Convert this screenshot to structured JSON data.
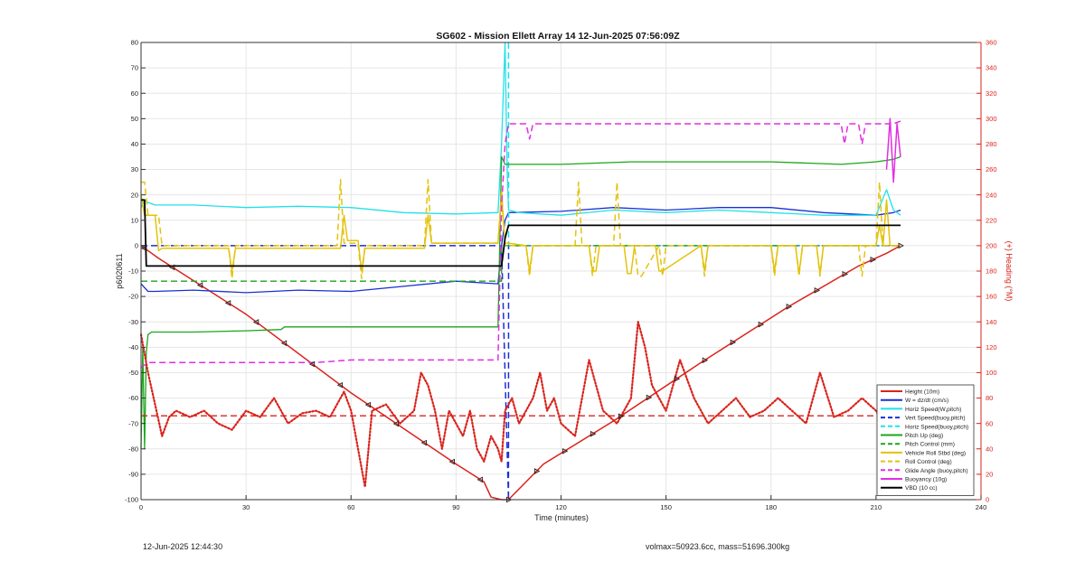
{
  "chart_data": {
    "type": "line",
    "title": "SG602 - Mission Ellett Array 14 12-Jun-2025 07:56:09Z",
    "xlabel": "Time (minutes)",
    "ylabel": "p6020611",
    "y2label": "(+) Heading (°M)",
    "xlim": [
      0,
      240
    ],
    "ylim": [
      -100,
      80
    ],
    "y2lim": [
      0,
      360
    ],
    "xticks": [
      0,
      30,
      60,
      90,
      120,
      150,
      180,
      210,
      240
    ],
    "yticks": [
      -100,
      -90,
      -80,
      -70,
      -60,
      -50,
      -40,
      -30,
      -20,
      -10,
      0,
      10,
      20,
      30,
      40,
      50,
      60,
      70,
      80
    ],
    "y2ticks": [
      0,
      20,
      40,
      60,
      80,
      100,
      120,
      140,
      160,
      180,
      200,
      220,
      240,
      260,
      280,
      300,
      320,
      340,
      360
    ],
    "grid": true,
    "legend_position": "bottom-right",
    "series": [
      {
        "name": "Height (10m)",
        "color": "#d9231c",
        "style": "solid",
        "width": 1.5,
        "x": [
          0,
          1,
          5,
          30,
          60,
          90,
          98,
          100,
          103,
          105,
          115,
          135,
          160,
          185,
          205,
          213,
          217
        ],
        "values": [
          0,
          -1,
          -5,
          -27,
          -58,
          -86,
          -93,
          -99,
          -100,
          -100,
          -86,
          -69,
          -46,
          -24,
          -8,
          -3,
          0
        ]
      },
      {
        "name": "W = dz/dt (cm/s)",
        "color": "#1a2fd6",
        "style": "solid",
        "width": 1.3,
        "x": [
          0,
          2,
          4,
          15,
          30,
          45,
          60,
          75,
          90,
          102,
          103,
          104,
          105,
          120,
          135,
          150,
          165,
          180,
          195,
          210,
          215,
          217
        ],
        "values": [
          -15,
          -18,
          -18,
          -17.5,
          -18.5,
          -17.5,
          -18,
          -16,
          -14,
          -15,
          0,
          10,
          13,
          13.5,
          15,
          14,
          15,
          15,
          13,
          12,
          13,
          14
        ]
      },
      {
        "name": "Horiz Speed(W,pitch)",
        "color": "#22e0e8",
        "style": "solid",
        "width": 1.3,
        "x": [
          0,
          1,
          2,
          4,
          15,
          30,
          45,
          60,
          75,
          90,
          102,
          103,
          104,
          104.6,
          105,
          108,
          120,
          135,
          150,
          165,
          180,
          195,
          210,
          213,
          215,
          217
        ],
        "values": [
          15,
          18,
          17,
          16,
          16,
          15,
          15.5,
          15,
          13,
          12.5,
          13,
          40,
          80,
          30,
          14,
          13,
          12,
          14,
          13,
          14,
          13,
          12,
          12,
          22,
          14,
          12
        ]
      },
      {
        "name": "Vert Speed(buoy,pitch)",
        "color": "#1a2fd6",
        "style": "dashed",
        "width": 1.5,
        "x": [
          0,
          103,
          105,
          105.01,
          217
        ],
        "values": [
          0,
          0,
          -100,
          0,
          0
        ]
      },
      {
        "name": "Horiz Speed(buoy,pitch)",
        "color": "#22e0e8",
        "style": "dashed",
        "width": 1.5,
        "x": [
          105,
          105.01,
          217
        ],
        "values": [
          80,
          0,
          0
        ]
      },
      {
        "name": "Pitch Up (deg)",
        "color": "#1aa61a",
        "style": "solid",
        "width": 1.3,
        "x": [
          0,
          0.5,
          1,
          1.5,
          2,
          3,
          15,
          30,
          40,
          41,
          60,
          75,
          90,
          102,
          103,
          104,
          105,
          120,
          140,
          160,
          180,
          200,
          210,
          215,
          217
        ],
        "values": [
          -80,
          -40,
          -80,
          -42,
          -35,
          -34,
          -34,
          -33.5,
          -33,
          -32,
          -32,
          -32,
          -32,
          -32,
          35,
          32,
          32,
          32,
          33,
          33,
          33,
          32,
          33,
          34,
          35
        ]
      },
      {
        "name": "Pitch Control (mm)",
        "color": "#1aa61a",
        "style": "dashed",
        "width": 1.3,
        "x": [
          0,
          103,
          103.01,
          217
        ],
        "values": [
          -14,
          -14,
          0,
          0
        ]
      },
      {
        "name": "Vehicle Roll Stbd (deg)",
        "color": "#e3c30e",
        "style": "solid",
        "width": 1.5,
        "x": [
          0,
          1,
          4,
          5,
          6,
          25,
          26,
          27,
          30,
          57,
          58,
          59,
          62,
          63,
          64,
          81,
          82,
          83,
          102,
          103,
          104,
          105,
          110,
          111,
          112,
          115,
          128,
          129,
          130,
          131,
          138,
          139,
          140,
          141,
          147,
          148,
          149,
          160,
          161,
          162,
          180,
          181,
          182,
          187,
          188,
          189,
          193,
          194,
          195,
          210,
          211,
          212,
          213,
          214,
          217
        ],
        "values": [
          20,
          12,
          12,
          -2,
          -1,
          -1,
          -10,
          -1,
          -1,
          -1,
          12,
          2,
          2,
          -10,
          -1,
          -1,
          12,
          1,
          1,
          20,
          1,
          1,
          0,
          -10,
          0,
          0,
          0,
          -10,
          -10,
          0,
          0,
          -11,
          -11,
          0,
          0,
          -10,
          -10,
          0,
          -10,
          0,
          0,
          -10,
          0,
          0,
          -11,
          0,
          0,
          -11,
          0,
          0,
          8,
          0,
          18,
          0,
          0
        ]
      },
      {
        "name": "Roll Control (deg)",
        "color": "#e3c30e",
        "style": "dashed",
        "width": 1.5,
        "x": [
          0,
          1,
          2,
          5,
          6,
          25,
          26,
          27,
          56,
          57,
          58,
          62,
          63,
          64,
          81,
          82,
          83,
          102,
          103,
          104,
          105,
          110,
          111,
          112,
          118,
          119,
          120,
          124,
          125,
          126,
          128,
          129,
          130,
          135,
          136,
          137,
          141,
          142,
          143,
          148,
          149,
          150,
          160,
          161,
          162,
          180,
          181,
          182,
          187,
          188,
          189,
          193,
          194,
          195,
          205,
          206,
          207,
          210,
          211,
          212,
          217
        ],
        "values": [
          25,
          25,
          12,
          12,
          0,
          0,
          -13,
          0,
          0,
          26,
          1,
          1,
          -13,
          0,
          0,
          26,
          1,
          1,
          22,
          0,
          0,
          0,
          -12,
          0,
          0,
          0,
          0,
          0,
          25,
          0,
          0,
          -12,
          0,
          0,
          25,
          0,
          0,
          -12,
          -12,
          0,
          -12,
          0,
          0,
          -12,
          0,
          0,
          -12,
          0,
          0,
          -12,
          0,
          0,
          -12,
          0,
          0,
          -12,
          0,
          0,
          25,
          0,
          0
        ]
      },
      {
        "name": "Glide Angle (buoy,pitch)",
        "color": "#e22ee3",
        "style": "dashed",
        "width": 1.5,
        "x": [
          0,
          2,
          50,
          60,
          102,
          103,
          104,
          105,
          110,
          111,
          112,
          120,
          200,
          201,
          202,
          205,
          206,
          207,
          215,
          217
        ],
        "values": [
          -48,
          -46,
          -46,
          -45,
          -45,
          15,
          40,
          48,
          48,
          42,
          48,
          48,
          48,
          40,
          48,
          48,
          40,
          48,
          48,
          49
        ]
      },
      {
        "name": "Buoyancy (10g)",
        "color": "#e22ee3",
        "style": "solid",
        "width": 1.5,
        "x": [
          213,
          214,
          215,
          216,
          217
        ],
        "values": [
          30,
          50,
          25,
          48,
          35
        ]
      },
      {
        "name": "VBD (10 cc)",
        "color": "#000000",
        "style": "solid",
        "width": 1.8,
        "x": [
          0,
          1,
          1.5,
          102,
          103,
          104,
          105,
          217
        ],
        "values": [
          18,
          18,
          -8,
          -8,
          -8,
          3,
          8,
          8
        ]
      },
      {
        "name": "(+) Heading (°M)",
        "axis": "right",
        "color": "#d9231c",
        "style": "dotted",
        "legend": false,
        "x": [
          0,
          2,
          4,
          6,
          8,
          10,
          14,
          18,
          22,
          26,
          30,
          34,
          38,
          42,
          46,
          50,
          54,
          58,
          60,
          62,
          64,
          66,
          70,
          74,
          78,
          80,
          82,
          84,
          86,
          88,
          90,
          92,
          94,
          96,
          98,
          100,
          102,
          103,
          104,
          106,
          108,
          110,
          112,
          114,
          116,
          118,
          120,
          124,
          128,
          132,
          136,
          140,
          142,
          144,
          146,
          148,
          150,
          154,
          158,
          162,
          166,
          170,
          174,
          178,
          182,
          186,
          190,
          194,
          198,
          202,
          206,
          210,
          212,
          214,
          216
        ],
        "values": [
          130,
          100,
          75,
          50,
          65,
          70,
          65,
          70,
          60,
          55,
          70,
          65,
          80,
          60,
          68,
          70,
          65,
          85,
          70,
          40,
          10,
          70,
          75,
          60,
          70,
          100,
          90,
          70,
          40,
          70,
          60,
          50,
          70,
          40,
          30,
          50,
          40,
          30,
          70,
          80,
          60,
          70,
          80,
          100,
          70,
          80,
          60,
          50,
          110,
          70,
          60,
          80,
          140,
          120,
          90,
          80,
          70,
          110,
          80,
          60,
          70,
          80,
          65,
          70,
          80,
          70,
          60,
          100,
          65,
          70,
          80,
          70,
          60,
          80,
          70
        ]
      },
      {
        "name": "mean heading",
        "axis": "right",
        "color": "#d9231c",
        "style": "dashed",
        "legend": false,
        "x": [
          0,
          217
        ],
        "values": [
          66,
          66
        ]
      }
    ]
  },
  "footer": {
    "timestamp": "12-Jun-2025 12:44:30",
    "summary": "volmax=50923.6cc, mass=51696.300kg"
  }
}
